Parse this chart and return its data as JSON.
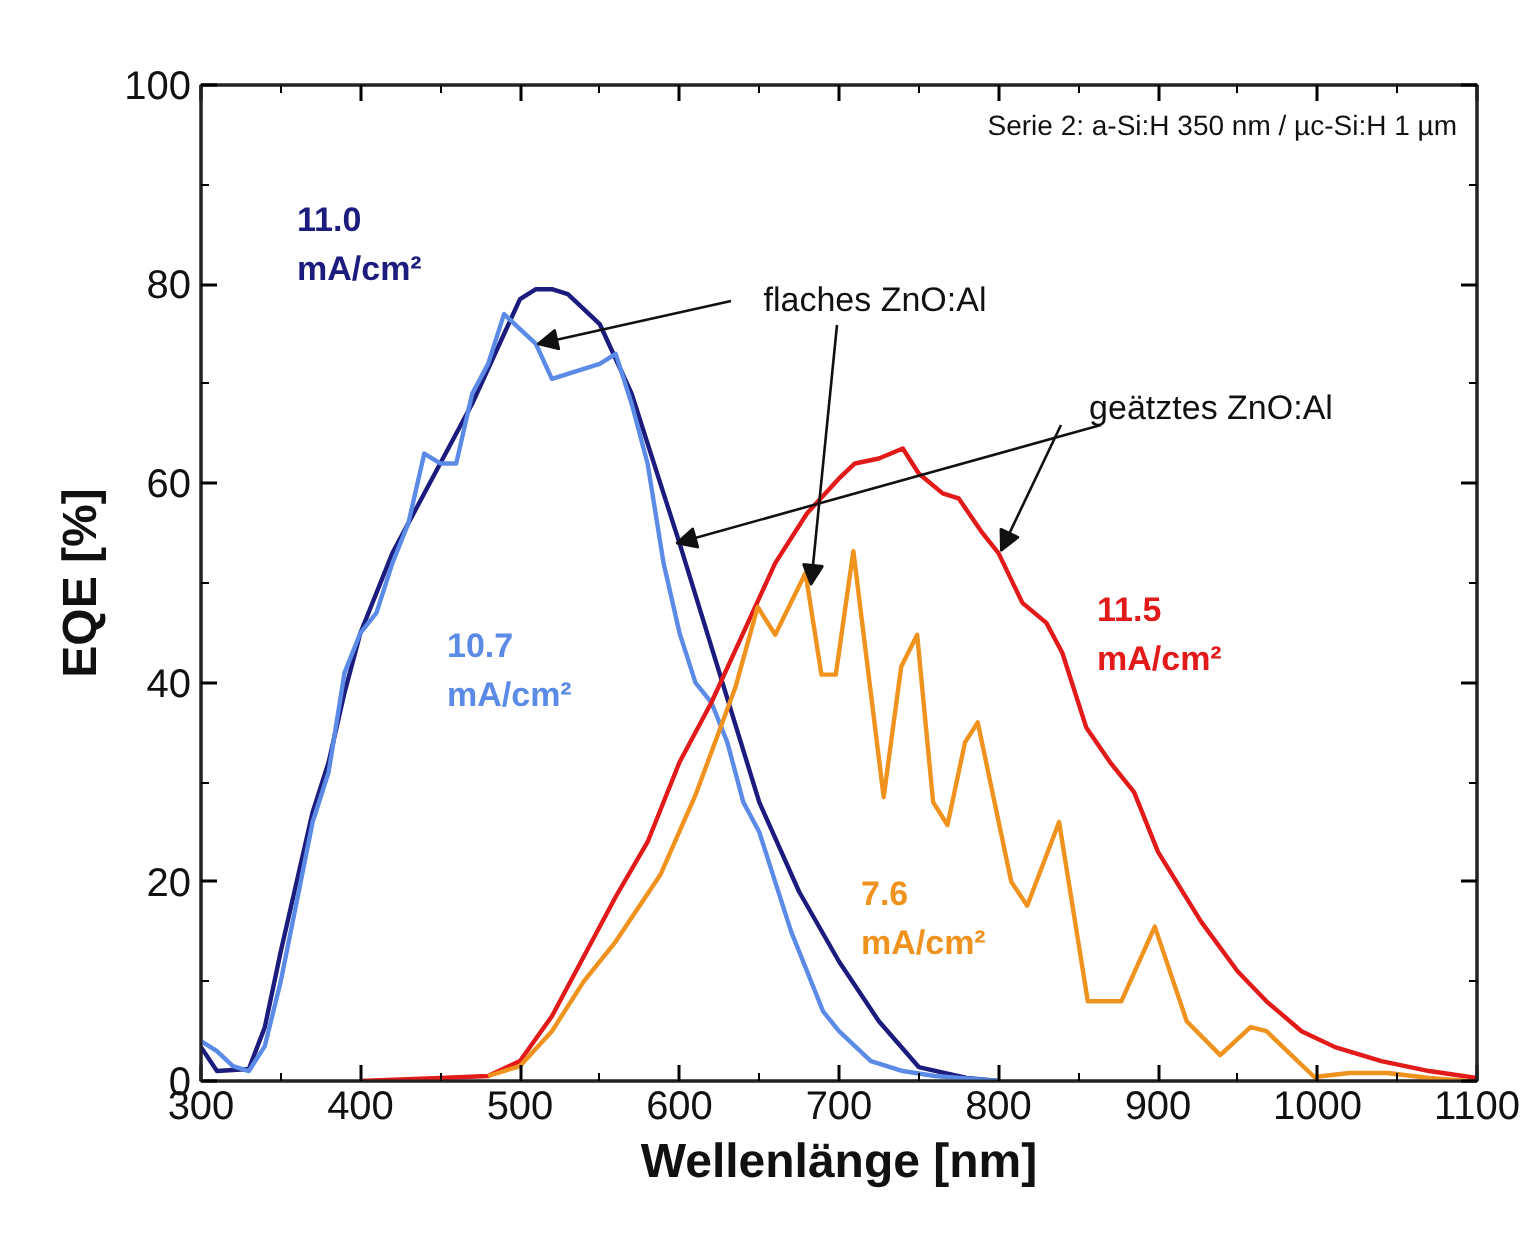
{
  "chart_data": {
    "type": "line",
    "xlabel": "Wellenlänge [nm]",
    "ylabel": "EQE [%]",
    "xlim": [
      300,
      1100
    ],
    "ylim": [
      0,
      100
    ],
    "xticks": [
      300,
      {
        "value": 350,
        "label": null
      },
      400,
      {
        "value": 450,
        "label": null
      },
      500,
      {
        "value": 550,
        "label": null
      },
      600,
      {
        "value": 650,
        "label": null
      },
      700,
      {
        "value": 750,
        "label": null
      },
      800,
      {
        "value": 850,
        "label": null
      },
      900,
      {
        "value": 950,
        "label": null
      },
      1000,
      {
        "value": 1050,
        "label": null
      },
      1100
    ],
    "yticks": [
      0,
      {
        "value": 10,
        "label": null
      },
      20,
      {
        "value": 30,
        "label": null
      },
      40,
      {
        "value": 50,
        "label": null
      },
      60,
      {
        "value": 70,
        "label": null
      },
      80,
      {
        "value": 90,
        "label": null
      },
      100
    ],
    "grid": false,
    "marker": "none",
    "line_style": "solid",
    "series": [
      {
        "color": "#1c1c7e",
        "x": [
          300,
          310,
          330,
          340,
          350,
          360,
          370,
          380,
          390,
          400,
          420,
          450,
          470,
          490,
          500,
          510,
          520,
          530,
          550,
          570,
          590,
          600,
          625,
          650,
          675,
          700,
          725,
          750,
          780,
          800
        ],
        "values": [
          3.4,
          1,
          1.2,
          5.4,
          13,
          20,
          27,
          32,
          39,
          45,
          53,
          62,
          68,
          75,
          78.5,
          79.5,
          79.5,
          79,
          76,
          69,
          59,
          54,
          41,
          28,
          19,
          12,
          6,
          1.4,
          0.3,
          0
        ]
      },
      {
        "color": "#5b8be6",
        "x": [
          300,
          310,
          320,
          330,
          340,
          350,
          360,
          370,
          380,
          390,
          400,
          410,
          420,
          430,
          440,
          450,
          460,
          470,
          480,
          490,
          500,
          510,
          520,
          530,
          540,
          550,
          560,
          570,
          580,
          590,
          600,
          610,
          620,
          630,
          640,
          650,
          660,
          670,
          680,
          690,
          700,
          720,
          740,
          760,
          800
        ],
        "values": [
          4,
          3,
          1.5,
          1,
          3.5,
          10,
          18,
          26,
          31,
          41,
          45,
          47,
          52,
          56,
          63,
          62,
          62,
          69,
          72,
          77,
          75.5,
          74,
          70.5,
          71,
          71.5,
          72,
          73,
          68,
          62,
          52,
          45,
          40,
          38,
          34,
          28,
          25,
          20,
          15,
          11,
          7,
          5,
          2,
          1,
          0.5,
          0
        ]
      },
      {
        "color": "#e21a1a",
        "x": [
          400,
          450,
          480,
          500,
          520,
          540,
          560,
          580,
          600,
          620,
          640,
          660,
          680,
          700,
          710,
          725,
          740,
          750,
          765,
          775,
          790,
          800,
          815,
          830,
          840,
          855,
          870,
          885,
          900,
          927,
          950,
          968,
          990,
          1011,
          1040,
          1070,
          1100
        ],
        "values": [
          0,
          0.3,
          0.5,
          2,
          6.5,
          12.5,
          18.5,
          24,
          32,
          38,
          45,
          52,
          57,
          60.5,
          62,
          62.5,
          63.5,
          61,
          59,
          58.5,
          55,
          53,
          48,
          46,
          43,
          35.5,
          32,
          29,
          23,
          16,
          11,
          8,
          5,
          3.4,
          2,
          1,
          0.3
        ]
      },
      {
        "color": "#f0921e",
        "x": [
          480,
          500,
          520,
          540,
          560,
          588,
          610,
          635,
          649,
          660,
          679,
          689,
          698,
          709,
          728,
          739,
          749,
          759,
          768,
          779,
          787,
          808,
          818,
          838,
          856,
          877,
          898,
          918,
          939,
          958,
          968,
          998,
          1020,
          1044,
          1070,
          1094
        ],
        "values": [
          0.5,
          1.5,
          5,
          10,
          14,
          20.7,
          28.7,
          39.5,
          47.6,
          44.8,
          51,
          40.8,
          40.8,
          53.2,
          28.5,
          41.6,
          44.8,
          28,
          25.7,
          34,
          36,
          20,
          17.6,
          26,
          8,
          8,
          15.5,
          6,
          2.6,
          5.4,
          5,
          0.4,
          0.8,
          0.8,
          0.3,
          0
        ]
      }
    ],
    "annotations": [
      "11.0\nmA/cm²",
      "10.7\nmA/cm²",
      "11.5\nmA/cm²",
      "7.6\nmA/cm²",
      {
        "text": "flaches ZnO:Al",
        "x": 511,
        "y": 74
      },
      {
        "text": "geätztes ZnO:Al",
        "x": 598,
        "y": 54
      },
      "Serie 2: a-Si:H 350 nm / µc-Si:H 1 µm"
    ]
  }
}
